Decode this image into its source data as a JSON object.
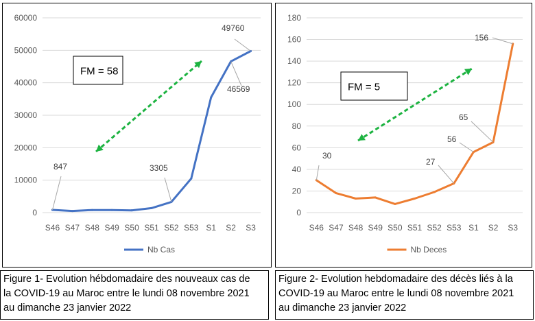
{
  "chart_data": [
    {
      "type": "line",
      "categories": [
        "S46",
        "S47",
        "S48",
        "S49",
        "S50",
        "S51",
        "S52",
        "S53",
        "S1",
        "S2",
        "S3"
      ],
      "series": [
        {
          "name": "Nb Cas",
          "values": [
            847,
            500,
            800,
            800,
            700,
            1400,
            3305,
            10500,
            35500,
            46569,
            49760
          ],
          "color": "#4472c4"
        }
      ],
      "ylim": [
        0,
        60000
      ],
      "yticks": [
        "0",
        "10000",
        "20000",
        "30000",
        "40000",
        "50000",
        "60000"
      ],
      "grid": true,
      "legend": "bottom",
      "annotations": [
        {
          "text": "847",
          "category": "S46"
        },
        {
          "text": "3305",
          "category": "S52"
        },
        {
          "text": "46569",
          "category": "S2"
        },
        {
          "text": "49760",
          "category": "S3"
        }
      ],
      "fm_box": "FM = 58",
      "trend_arrow_color": "#1db341"
    },
    {
      "type": "line",
      "categories": [
        "S46",
        "S47",
        "S48",
        "S49",
        "S50",
        "S51",
        "S52",
        "S53",
        "S1",
        "S2",
        "S3"
      ],
      "series": [
        {
          "name": "Nb Deces",
          "values": [
            30,
            18,
            13,
            14,
            8,
            13,
            19,
            27,
            56,
            65,
            156
          ],
          "color": "#ed7d31"
        }
      ],
      "ylim": [
        0,
        180
      ],
      "yticks": [
        "0",
        "20",
        "40",
        "60",
        "80",
        "100",
        "120",
        "140",
        "160",
        "180"
      ],
      "grid": true,
      "legend": "bottom",
      "annotations": [
        {
          "text": "30",
          "category": "S46"
        },
        {
          "text": "27",
          "category": "S53"
        },
        {
          "text": "56",
          "category": "S1"
        },
        {
          "text": "65",
          "category": "S2"
        },
        {
          "text": "156",
          "category": "S3"
        }
      ],
      "fm_box": "FM = 5",
      "trend_arrow_color": "#1db341"
    }
  ],
  "captions": [
    [
      "Figure 1- Evolution hébdomadaire des nouveaux cas de",
      "la COVID-19 au Maroc entre le lundi 08 novembre 2021",
      "au dimanche 23 janvier 2022"
    ],
    [
      "Figure 2- Evolution hebdomadaire des décès liés à la",
      "COVID-19 au Maroc entre le lundi 08 novembre 2021",
      "au dimanche 23 janvier 2022"
    ]
  ]
}
